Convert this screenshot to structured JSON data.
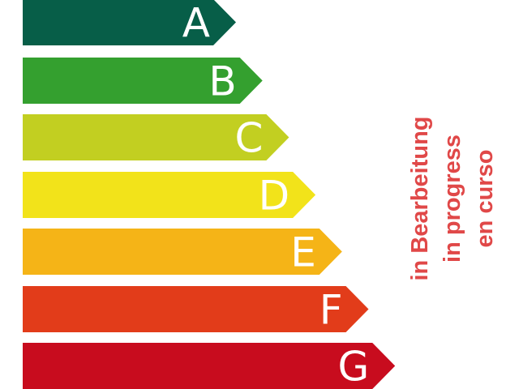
{
  "classes": [
    {
      "label": "A",
      "color": "#075e48"
    },
    {
      "label": "B",
      "color": "#34a02f"
    },
    {
      "label": "C",
      "color": "#c2cf21"
    },
    {
      "label": "D",
      "color": "#f2e31a"
    },
    {
      "label": "E",
      "color": "#f5b417"
    },
    {
      "label": "F",
      "color": "#e23c1a"
    },
    {
      "label": "G",
      "color": "#c80c1e"
    }
  ],
  "status": {
    "color": "#e04848",
    "lines": [
      "in Bearbeitung",
      "in progress",
      "en curso"
    ]
  }
}
